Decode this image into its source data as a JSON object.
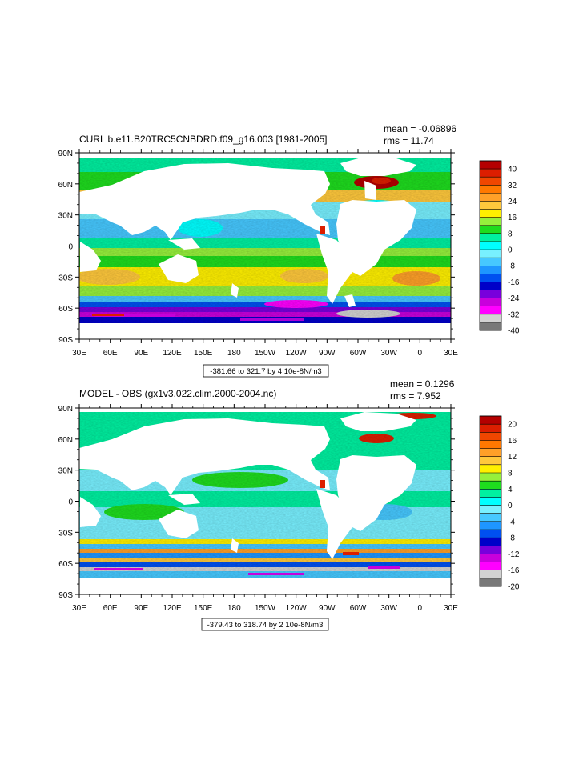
{
  "chart_data": [
    {
      "type": "heatmap",
      "title": "CURL b.e11.B20TRC5CNBDRD.f09_g16.003 [1981-2005]",
      "stats": {
        "mean": "mean = -0.06896",
        "rms": "rms = 11.74"
      },
      "lat_ticks": [
        "90N",
        "60N",
        "30N",
        "0",
        "30S",
        "60S",
        "90S"
      ],
      "lon_ticks": [
        "30E",
        "60E",
        "90E",
        "120E",
        "150E",
        "180",
        "150W",
        "120W",
        "90W",
        "60W",
        "30W",
        "0",
        "30E"
      ],
      "range_label": "-381.66 to 321.7 by 4 10e-8N/m3",
      "colorbar": {
        "labels": [
          "40",
          "32",
          "24",
          "16",
          "8",
          "0",
          "-8",
          "-16",
          "-24",
          "-32",
          "-40"
        ],
        "colors": [
          "#b40000",
          "#dc1e00",
          "#f04600",
          "#ff7800",
          "#ffa028",
          "#ffc83c",
          "#fff000",
          "#96f03c",
          "#1edc1e",
          "#00f0a0",
          "#00ffff",
          "#78f0ff",
          "#46c8ff",
          "#1e96ff",
          "#0050f0",
          "#0000c8",
          "#7800dc",
          "#c800dc",
          "#ff00ff",
          "#d2d2d2",
          "#787878"
        ]
      }
    },
    {
      "type": "heatmap",
      "title": "MODEL - OBS (gx1v3.022.clim.2000-2004.nc)",
      "stats": {
        "mean": "mean = 0.1296",
        "rms": "rms = 7.952"
      },
      "lat_ticks": [
        "90N",
        "60N",
        "30N",
        "0",
        "30S",
        "60S",
        "90S"
      ],
      "lon_ticks": [
        "30E",
        "60E",
        "90E",
        "120E",
        "150E",
        "180",
        "150W",
        "120W",
        "90W",
        "60W",
        "30W",
        "0",
        "30E"
      ],
      "range_label": "-379.43 to 318.74 by 2 10e-8N/m3",
      "colorbar": {
        "labels": [
          "20",
          "16",
          "12",
          "8",
          "4",
          "0",
          "-4",
          "-8",
          "-12",
          "-16",
          "-20"
        ],
        "colors": [
          "#b40000",
          "#dc1e00",
          "#f04600",
          "#ff7800",
          "#ffa028",
          "#ffc83c",
          "#fff000",
          "#96f03c",
          "#1edc1e",
          "#00f0a0",
          "#00ffff",
          "#78f0ff",
          "#46c8ff",
          "#1e96ff",
          "#0050f0",
          "#0000c8",
          "#7800dc",
          "#c800dc",
          "#ff00ff",
          "#d2d2d2",
          "#787878"
        ]
      }
    }
  ]
}
